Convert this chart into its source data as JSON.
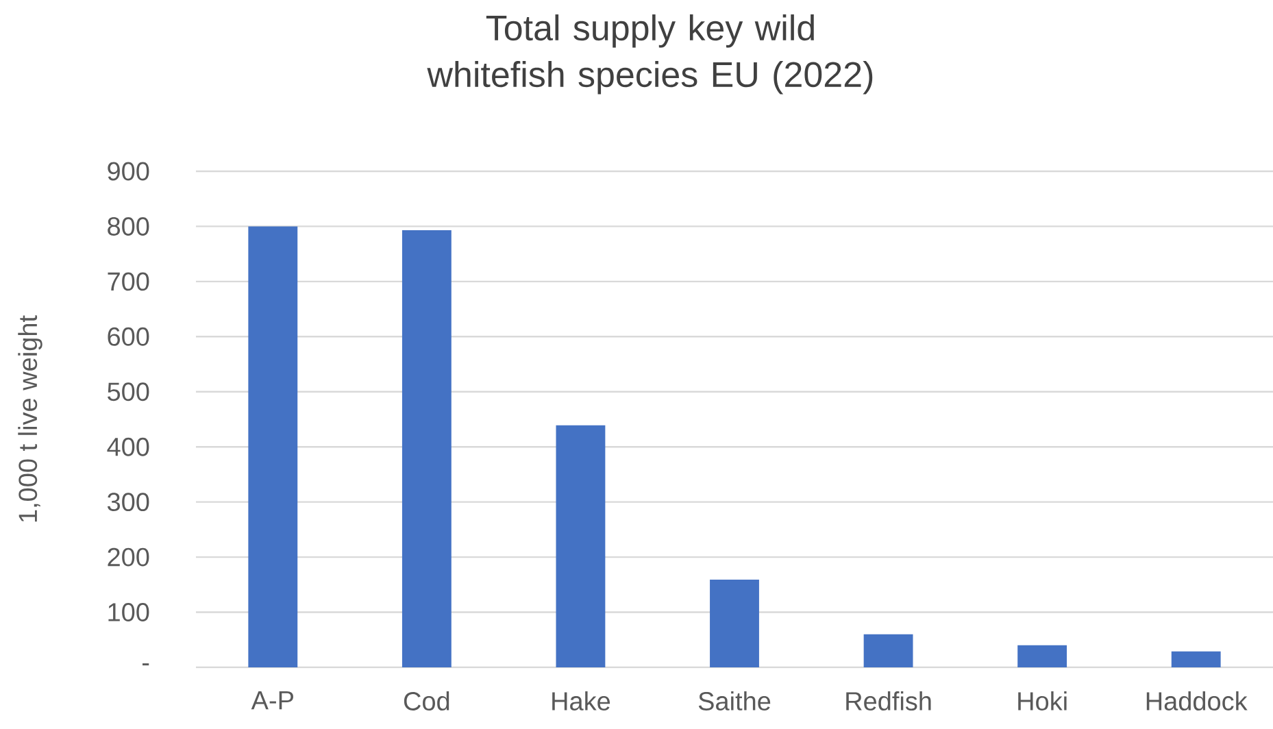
{
  "chart_data": {
    "type": "bar",
    "title": "Total supply key wild whitefish species EU (2022)",
    "ylabel": "1,000 t live weight",
    "categories": [
      "A-P",
      "Cod",
      "Hake",
      "Saithe",
      "Redfish",
      "Hoki",
      "Haddock"
    ],
    "values": [
      800,
      793,
      439,
      159,
      60,
      40,
      29
    ],
    "color": "#4472c4",
    "ylim": [
      0,
      900
    ],
    "yticks": [
      {
        "value": 0,
        "label": "-"
      },
      100,
      200,
      300,
      400,
      500,
      600,
      700,
      800,
      900
    ],
    "grid": "y"
  }
}
